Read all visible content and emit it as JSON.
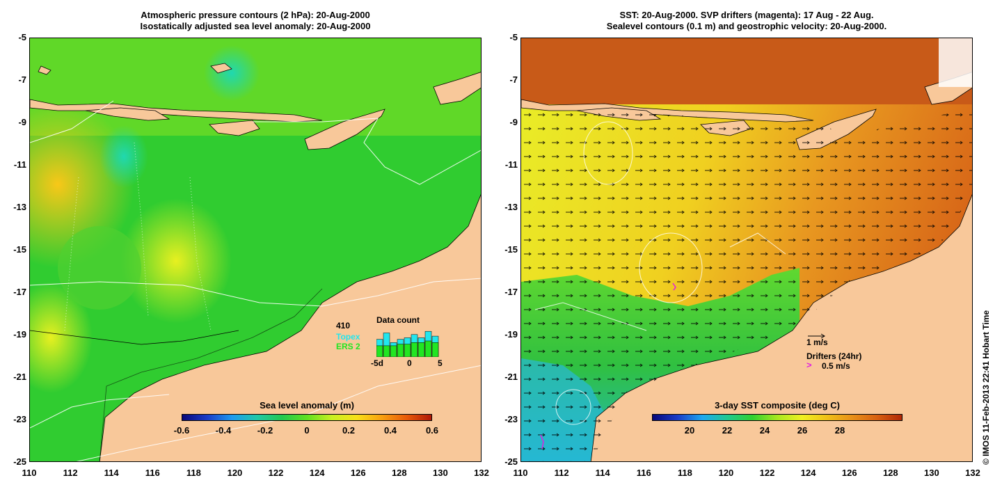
{
  "left_panel": {
    "title_line1": "Atmospheric pressure contours (2 hPa): 20-Aug-2000",
    "title_line2": "Isostatically adjusted sea level anomaly: 20-Aug-2000",
    "colorbar": {
      "label": "Sea level anomaly (m)",
      "ticks": [
        "-0.6",
        "-0.4",
        "-0.2",
        "0",
        "0.2",
        "0.4",
        "0.6"
      ],
      "colors": [
        "#08087a",
        "#1a3cc8",
        "#1e9af0",
        "#20c8a8",
        "#22c850",
        "#60e020",
        "#c8f020",
        "#f8e018",
        "#f8a010",
        "#e85a08",
        "#b01808"
      ]
    },
    "data_count": {
      "title": "Data count",
      "count": "410",
      "series": [
        {
          "name": "Topex",
          "color": "#22e6ee"
        },
        {
          "name": "ERS 2",
          "color": "#22e622"
        }
      ],
      "x_ticks": [
        "-5d",
        "0",
        "5"
      ],
      "topex_values": [
        0.55,
        0.75,
        0.45,
        0.55,
        0.6,
        0.7,
        0.6,
        0.8,
        0.65
      ],
      "ers_values": [
        0.35,
        0.35,
        0.35,
        0.4,
        0.4,
        0.45,
        0.45,
        0.5,
        0.45
      ]
    }
  },
  "right_panel": {
    "title_line1": "SST: 20-Aug-2000. SVP drifters (magenta): 17 Aug - 22 Aug.",
    "title_line2": "Sealevel contours (0.1 m) and geostrophic velocity: 20-Aug-2000.",
    "colorbar": {
      "label": "3-day SST composite (deg C)",
      "ticks": [
        "20",
        "22",
        "24",
        "26",
        "28"
      ],
      "colors": [
        "#08087a",
        "#1a3cc8",
        "#1ea8f0",
        "#20c890",
        "#30d030",
        "#a8e820",
        "#f0f020",
        "#f0c018",
        "#e89018",
        "#d86010",
        "#b02808"
      ]
    },
    "legend": {
      "velocity": "1 m/s",
      "drifters": "Drifters (24hr)",
      "drifter_speed": "0.5 m/s"
    }
  },
  "axes": {
    "y_ticks": [
      "-5",
      "-7",
      "-9",
      "-11",
      "-13",
      "-15",
      "-17",
      "-19",
      "-21",
      "-23",
      "-25"
    ],
    "x_ticks": [
      "110",
      "112",
      "114",
      "116",
      "118",
      "120",
      "122",
      "124",
      "126",
      "128",
      "130",
      "132"
    ]
  },
  "credit": "© IMOS 11-Feb-2013 22:41 Hobart Time",
  "colors": {
    "land": "#f8c89a",
    "ocean_green": "#22c83c",
    "sst_warm": "#d86818",
    "sst_yellow": "#e8e828"
  }
}
